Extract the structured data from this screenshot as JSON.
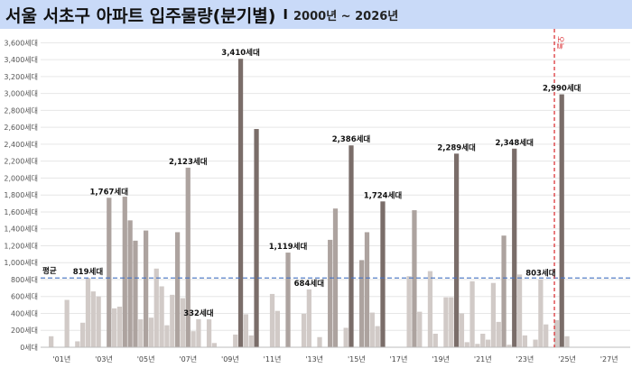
{
  "title": {
    "main": "서울 서초구 아파트 입주물량(분기별)",
    "separator": "I",
    "sub": "2000년 ~ 2026년"
  },
  "colors": {
    "title_bg": "#c9daf8",
    "bar_dark": "#7a6d69",
    "bar_mid": "#ada39f",
    "bar_light": "#d1cac7",
    "avg_line": "#4472c4",
    "today_line": "#d9262b"
  },
  "chart_data": {
    "type": "bar",
    "title": "서울 서초구 아파트 입주물량(분기별)",
    "unit": "세대",
    "ylim": [
      0,
      3700
    ],
    "yticks": [
      0,
      200,
      400,
      600,
      800,
      1000,
      1200,
      1400,
      1600,
      1800,
      2000,
      2200,
      2400,
      2600,
      2800,
      3000,
      3200,
      3400,
      3600
    ],
    "ytick_labels": [
      "0세대",
      "200세대",
      "400세대",
      "600세대",
      "800세대",
      "1,000세대",
      "1,200세대",
      "1,400세대",
      "1,600세대",
      "1,800세대",
      "2,000세대",
      "2,200세대",
      "2,400세대",
      "2,600세대",
      "2,800세대",
      "3,000세대",
      "3,200세대",
      "3,400세대",
      "3,600세대"
    ],
    "xlim": [
      2000.0,
      2028.0
    ],
    "xticks": [
      2001,
      2003,
      2005,
      2007,
      2009,
      2011,
      2013,
      2015,
      2017,
      2019,
      2021,
      2023,
      2025,
      2027
    ],
    "xtick_labels": [
      "'01년",
      "'03년",
      "'05년",
      "'07년",
      "'09년",
      "'11년",
      "'13년",
      "'15년",
      "'17년",
      "'19년",
      "'21년",
      "'23년",
      "'25년",
      "'27년"
    ],
    "bars": [
      {
        "x": 2000.5,
        "value": 130,
        "shade": "light"
      },
      {
        "x": 2001.25,
        "value": 560,
        "shade": "light"
      },
      {
        "x": 2001.75,
        "value": 70,
        "shade": "light"
      },
      {
        "x": 2002.0,
        "value": 290,
        "shade": "light"
      },
      {
        "x": 2002.25,
        "value": 819,
        "shade": "light"
      },
      {
        "x": 2002.5,
        "value": 660,
        "shade": "light"
      },
      {
        "x": 2002.75,
        "value": 600,
        "shade": "light"
      },
      {
        "x": 2003.25,
        "value": 1767,
        "shade": "mid"
      },
      {
        "x": 2003.5,
        "value": 460,
        "shade": "light"
      },
      {
        "x": 2003.75,
        "value": 480,
        "shade": "light"
      },
      {
        "x": 2004.0,
        "value": 1780,
        "shade": "mid"
      },
      {
        "x": 2004.25,
        "value": 1500,
        "shade": "mid"
      },
      {
        "x": 2004.5,
        "value": 1260,
        "shade": "mid"
      },
      {
        "x": 2004.75,
        "value": 330,
        "shade": "light"
      },
      {
        "x": 2005.0,
        "value": 1380,
        "shade": "mid"
      },
      {
        "x": 2005.25,
        "value": 350,
        "shade": "light"
      },
      {
        "x": 2005.5,
        "value": 930,
        "shade": "light"
      },
      {
        "x": 2005.75,
        "value": 720,
        "shade": "light"
      },
      {
        "x": 2006.0,
        "value": 260,
        "shade": "light"
      },
      {
        "x": 2006.25,
        "value": 620,
        "shade": "light"
      },
      {
        "x": 2006.5,
        "value": 1360,
        "shade": "mid"
      },
      {
        "x": 2006.75,
        "value": 580,
        "shade": "light"
      },
      {
        "x": 2007.0,
        "value": 2123,
        "shade": "mid"
      },
      {
        "x": 2007.25,
        "value": 190,
        "shade": "light"
      },
      {
        "x": 2007.5,
        "value": 332,
        "shade": "light"
      },
      {
        "x": 2008.0,
        "value": 330,
        "shade": "light"
      },
      {
        "x": 2008.25,
        "value": 50,
        "shade": "light"
      },
      {
        "x": 2009.25,
        "value": 150,
        "shade": "light"
      },
      {
        "x": 2009.5,
        "value": 3410,
        "shade": "dark"
      },
      {
        "x": 2009.75,
        "value": 390,
        "shade": "light"
      },
      {
        "x": 2010.0,
        "value": 140,
        "shade": "light"
      },
      {
        "x": 2010.25,
        "value": 2580,
        "shade": "dark"
      },
      {
        "x": 2011.0,
        "value": 630,
        "shade": "light"
      },
      {
        "x": 2011.25,
        "value": 430,
        "shade": "light"
      },
      {
        "x": 2011.75,
        "value": 1119,
        "shade": "mid"
      },
      {
        "x": 2012.5,
        "value": 395,
        "shade": "light"
      },
      {
        "x": 2012.75,
        "value": 684,
        "shade": "light"
      },
      {
        "x": 2013.25,
        "value": 120,
        "shade": "light"
      },
      {
        "x": 2013.75,
        "value": 1270,
        "shade": "mid"
      },
      {
        "x": 2014.0,
        "value": 1640,
        "shade": "mid"
      },
      {
        "x": 2014.5,
        "value": 230,
        "shade": "light"
      },
      {
        "x": 2014.75,
        "value": 2386,
        "shade": "dark"
      },
      {
        "x": 2015.25,
        "value": 1030,
        "shade": "mid"
      },
      {
        "x": 2015.5,
        "value": 1360,
        "shade": "mid"
      },
      {
        "x": 2015.75,
        "value": 410,
        "shade": "light"
      },
      {
        "x": 2016.0,
        "value": 250,
        "shade": "light"
      },
      {
        "x": 2016.25,
        "value": 1724,
        "shade": "dark"
      },
      {
        "x": 2017.5,
        "value": 840,
        "shade": "light"
      },
      {
        "x": 2017.75,
        "value": 1620,
        "shade": "mid"
      },
      {
        "x": 2018.0,
        "value": 420,
        "shade": "light"
      },
      {
        "x": 2018.5,
        "value": 900,
        "shade": "light"
      },
      {
        "x": 2018.75,
        "value": 160,
        "shade": "light"
      },
      {
        "x": 2019.25,
        "value": 590,
        "shade": "light"
      },
      {
        "x": 2019.5,
        "value": 590,
        "shade": "light"
      },
      {
        "x": 2019.75,
        "value": 2289,
        "shade": "dark"
      },
      {
        "x": 2020.0,
        "value": 400,
        "shade": "light"
      },
      {
        "x": 2020.25,
        "value": 60,
        "shade": "light"
      },
      {
        "x": 2020.5,
        "value": 780,
        "shade": "light"
      },
      {
        "x": 2020.75,
        "value": 40,
        "shade": "light"
      },
      {
        "x": 2021.0,
        "value": 160,
        "shade": "light"
      },
      {
        "x": 2021.25,
        "value": 90,
        "shade": "light"
      },
      {
        "x": 2021.5,
        "value": 760,
        "shade": "light"
      },
      {
        "x": 2021.75,
        "value": 300,
        "shade": "light"
      },
      {
        "x": 2022.0,
        "value": 1320,
        "shade": "mid"
      },
      {
        "x": 2022.25,
        "value": 30,
        "shade": "light"
      },
      {
        "x": 2022.5,
        "value": 2348,
        "shade": "dark"
      },
      {
        "x": 2022.75,
        "value": 860,
        "shade": "light"
      },
      {
        "x": 2023.0,
        "value": 140,
        "shade": "light"
      },
      {
        "x": 2023.5,
        "value": 90,
        "shade": "light"
      },
      {
        "x": 2023.75,
        "value": 803,
        "shade": "light"
      },
      {
        "x": 2024.0,
        "value": 270,
        "shade": "light"
      },
      {
        "x": 2024.5,
        "value": 320,
        "shade": "light"
      },
      {
        "x": 2024.75,
        "value": 2990,
        "shade": "dark"
      },
      {
        "x": 2025.0,
        "value": 130,
        "shade": "light"
      }
    ],
    "data_labels": [
      {
        "x": 2002.25,
        "value": 819,
        "text": "819세대"
      },
      {
        "x": 2003.25,
        "value": 1767,
        "text": "1,767세대"
      },
      {
        "x": 2007.0,
        "value": 2123,
        "text": "2,123세대"
      },
      {
        "x": 2007.5,
        "value": 332,
        "text": "332세대"
      },
      {
        "x": 2009.5,
        "value": 3410,
        "text": "3,410세대"
      },
      {
        "x": 2011.75,
        "value": 1119,
        "text": "1,119세대"
      },
      {
        "x": 2012.75,
        "value": 684,
        "text": "684세대"
      },
      {
        "x": 2014.75,
        "value": 2386,
        "text": "2,386세대"
      },
      {
        "x": 2016.25,
        "value": 1724,
        "text": "1,724세대"
      },
      {
        "x": 2019.75,
        "value": 2289,
        "text": "2,289세대"
      },
      {
        "x": 2022.5,
        "value": 2348,
        "text": "2,348세대"
      },
      {
        "x": 2023.75,
        "value": 803,
        "text": "803세대"
      },
      {
        "x": 2024.75,
        "value": 2990,
        "text": "2,990세대"
      }
    ],
    "average": {
      "value": 819,
      "label": "평균"
    },
    "today_marker": {
      "x": 2024.4,
      "label": "오늘"
    },
    "grid": true
  }
}
